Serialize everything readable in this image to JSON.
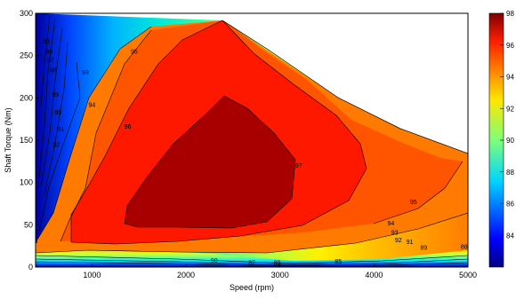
{
  "chart_data": {
    "type": "contour",
    "xlabel": "Speed  (rpm)",
    "ylabel": "Shaft Torque  (Nm)",
    "xlim": [
      400,
      5000
    ],
    "ylim": [
      0,
      300
    ],
    "x_ticks": [
      1000,
      2000,
      3000,
      4000,
      5000
    ],
    "y_ticks": [
      0,
      50,
      100,
      150,
      200,
      250,
      300
    ],
    "colorbar": {
      "ticks": [
        84,
        86,
        88,
        90,
        92,
        94,
        96,
        98
      ],
      "range": [
        82,
        98
      ]
    },
    "contour_levels": [
      82,
      83,
      84,
      85,
      86,
      87,
      88,
      89,
      90,
      91,
      92,
      93,
      94,
      95,
      96,
      97,
      98
    ],
    "region_fill_levels": [
      {
        "level": 95,
        "color": "#ff6a00"
      },
      {
        "level": 96,
        "color": "#ff1a00"
      },
      {
        "level": 97,
        "color": "#a80000"
      }
    ],
    "max_torque_boundary": [
      {
        "speed": 2400,
        "torque": 290
      },
      {
        "speed": 3000,
        "torque": 230
      },
      {
        "speed": 4000,
        "torque": 175
      },
      {
        "speed": 5000,
        "torque": 135
      }
    ],
    "contour_labels": [
      {
        "text": "95",
        "speed": 1450,
        "torque": 255
      },
      {
        "text": "94",
        "speed": 1000,
        "torque": 192
      },
      {
        "text": "96",
        "speed": 1380,
        "torque": 166
      },
      {
        "text": "97",
        "speed": 3200,
        "torque": 120
      },
      {
        "text": "93",
        "speed": 930,
        "torque": 230
      },
      {
        "text": "92",
        "speed": 620,
        "torque": 145
      },
      {
        "text": "91",
        "speed": 670,
        "torque": 163
      },
      {
        "text": "90",
        "speed": 640,
        "torque": 183
      },
      {
        "text": "89",
        "speed": 610,
        "torque": 204
      },
      {
        "text": "88",
        "speed": 590,
        "torque": 233
      },
      {
        "text": "87",
        "speed": 560,
        "torque": 245
      },
      {
        "text": "86",
        "speed": 545,
        "torque": 255
      },
      {
        "text": "85",
        "speed": 515,
        "torque": 267
      },
      {
        "text": "95",
        "speed": 4420,
        "torque": 77
      },
      {
        "text": "94",
        "speed": 4180,
        "torque": 52
      },
      {
        "text": "93",
        "speed": 4220,
        "torque": 41
      },
      {
        "text": "92",
        "speed": 4260,
        "torque": 32
      },
      {
        "text": "91",
        "speed": 4380,
        "torque": 30
      },
      {
        "text": "89",
        "speed": 4530,
        "torque": 23
      },
      {
        "text": "88",
        "speed": 4960,
        "torque": 24
      },
      {
        "text": "90",
        "speed": 2300,
        "torque": 8
      },
      {
        "text": "87",
        "speed": 2700,
        "torque": 5
      },
      {
        "text": "89",
        "speed": 2970,
        "torque": 5
      },
      {
        "text": "85",
        "speed": 3620,
        "torque": 7
      }
    ]
  }
}
